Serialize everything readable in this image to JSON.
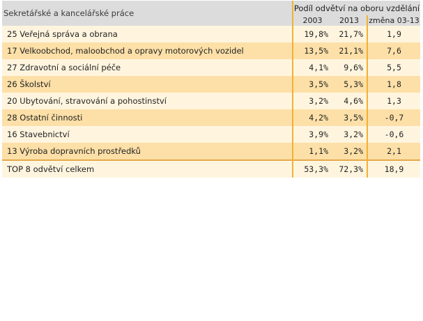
{
  "table": {
    "title": "Sekretářské a kancelářské práce",
    "group_header": "Podíl odvětví na oboru vzdělání",
    "columns": [
      "2003",
      "2013",
      "změna 03-13"
    ],
    "rows": [
      {
        "label": "25 Veřejná správa a obrana",
        "y2003": "19,8%",
        "y2013": "21,7%",
        "change": "1,9"
      },
      {
        "label": "17 Velkoobchod, maloobchod a opravy motorových vozidel",
        "y2003": "13,5%",
        "y2013": "21,1%",
        "change": "7,6"
      },
      {
        "label": "27 Zdravotní a sociální péče",
        "y2003": "4,1%",
        "y2013": "9,6%",
        "change": "5,5"
      },
      {
        "label": "26 Školství",
        "y2003": "3,5%",
        "y2013": "5,3%",
        "change": "1,8"
      },
      {
        "label": "20 Ubytování, stravování a pohostinství",
        "y2003": "3,2%",
        "y2013": "4,6%",
        "change": "1,3"
      },
      {
        "label": "28 Ostatní činnosti",
        "y2003": "4,2%",
        "y2013": "3,5%",
        "change": "-0,7"
      },
      {
        "label": "16 Stavebnictví",
        "y2003": "3,9%",
        "y2013": "3,2%",
        "change": "-0,6"
      },
      {
        "label": "13 Výroba dopravních prostředků",
        "y2003": "1,1%",
        "y2013": "3,2%",
        "change": "2,1"
      }
    ],
    "total": {
      "label": "TOP 8 odvětví celkem",
      "y2003": "53,3%",
      "y2013": "72,3%",
      "change": "18,9"
    }
  },
  "colors": {
    "header": "#dcdcdc",
    "row_light": "#fff5df",
    "row_dark": "#fde0a8",
    "separator": "#f2b133"
  }
}
